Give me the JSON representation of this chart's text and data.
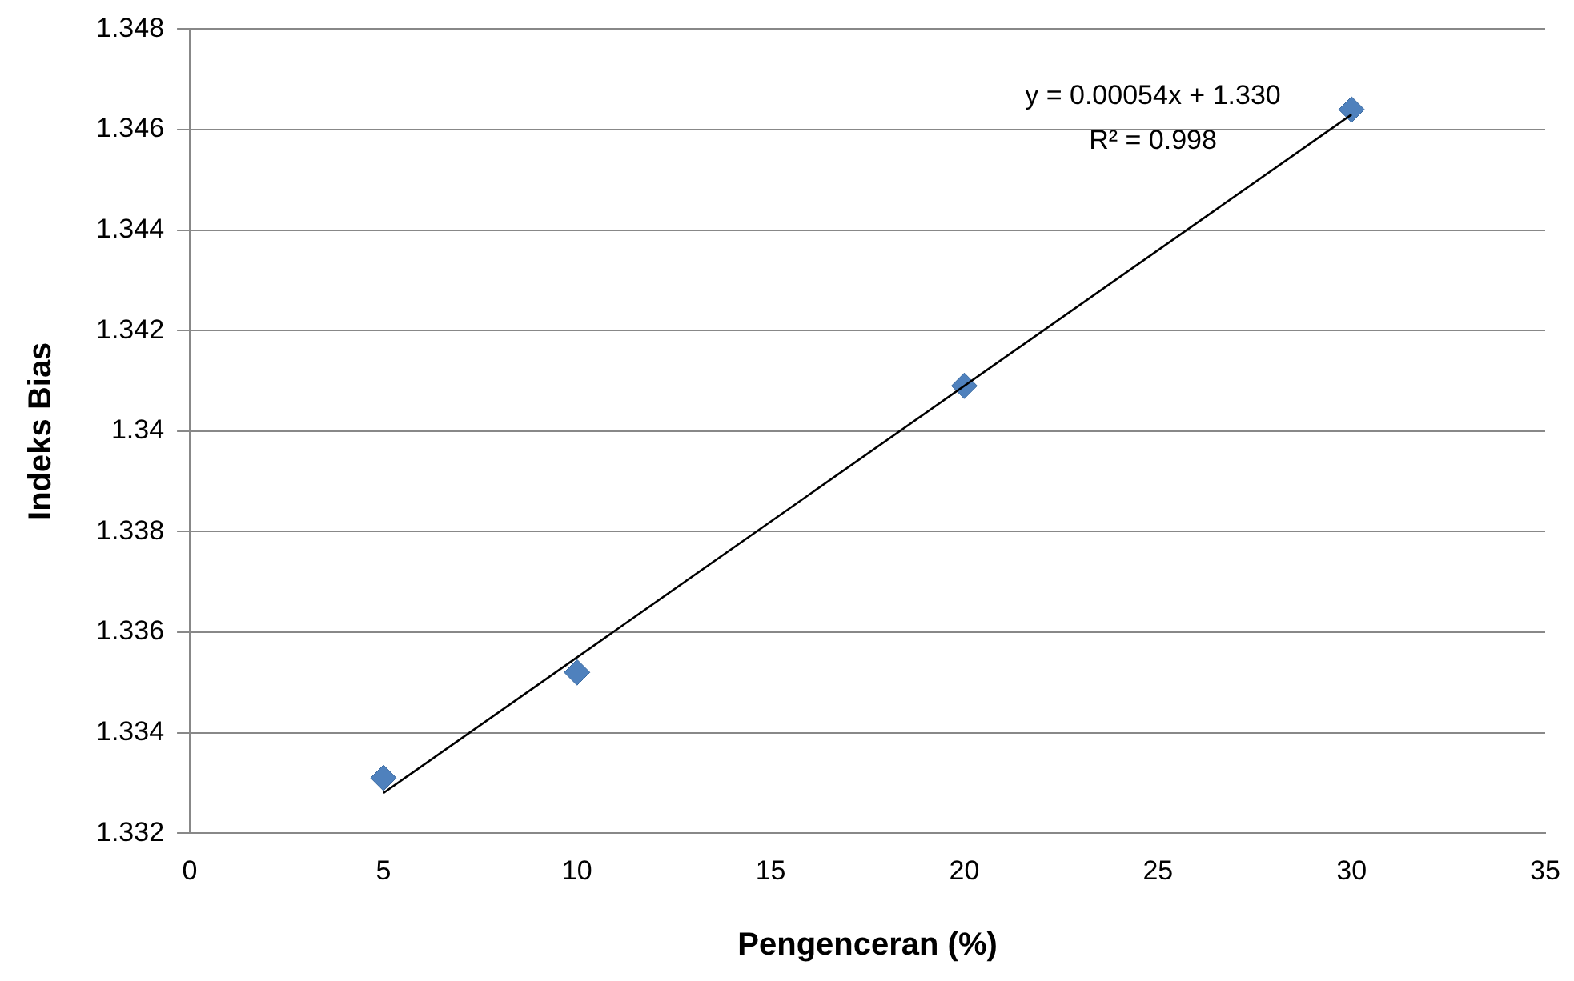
{
  "chart_data": {
    "type": "scatter",
    "xlabel": "Pengenceran (%)",
    "ylabel": "Indeks Bias",
    "xlim": [
      0,
      35
    ],
    "xticks": [
      0,
      5,
      10,
      15,
      20,
      25,
      30,
      35
    ],
    "ylim": [
      1.332,
      1.348
    ],
    "yticks": [
      1.332,
      1.334,
      1.336,
      1.338,
      1.34,
      1.342,
      1.344,
      1.346,
      1.348
    ],
    "grid": "y",
    "legend": false,
    "series": [
      {
        "type": "scatter",
        "color": "#4f81bd",
        "marker": "diamond",
        "x": [
          5,
          10,
          20,
          30
        ],
        "values": [
          1.3331,
          1.3352,
          1.3409,
          1.3464
        ]
      },
      {
        "type": "line",
        "color": "#000000",
        "marker": "none",
        "x": [
          5,
          30
        ],
        "values": [
          1.3328,
          1.3463
        ]
      }
    ],
    "annotations": [
      "y = 0.00054x + 1.330",
      "R² = 0.998"
    ]
  }
}
